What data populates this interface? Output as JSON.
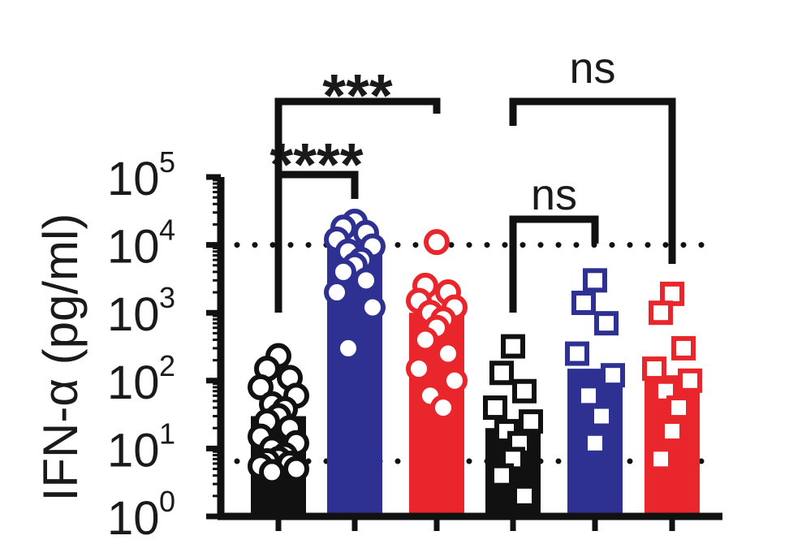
{
  "chart_data": {
    "type": "bar",
    "title": "",
    "ylabel": "IFN-α (pg/ml)",
    "yscale": "log",
    "ylim": [
      1,
      100000
    ],
    "yticks": [
      {
        "base": "10",
        "exp": "0",
        "value": 1
      },
      {
        "base": "10",
        "exp": "1",
        "value": 10
      },
      {
        "base": "10",
        "exp": "2",
        "value": 100
      },
      {
        "base": "10",
        "exp": "3",
        "value": 1000
      },
      {
        "base": "10",
        "exp": "4",
        "value": 10000
      },
      {
        "base": "10",
        "exp": "5",
        "value": 100000
      }
    ],
    "reference_lines": [
      {
        "value": 10000,
        "style": "dotted"
      },
      {
        "value": 6.5,
        "style": "dotted"
      }
    ],
    "grid": false,
    "legend": "none",
    "series": [
      {
        "marker": "circle",
        "color": "#111111",
        "fill": "#111111",
        "value": 30,
        "points": [
          230,
          150,
          110,
          80,
          60,
          45,
          38,
          30,
          25,
          20,
          15,
          12,
          10,
          8,
          7,
          6.5,
          6,
          5.5,
          5,
          4.5
        ]
      },
      {
        "marker": "circle",
        "color": "#2e3192",
        "fill": "#2e3192",
        "value": 9000,
        "points": [
          22000,
          18000,
          15000,
          12000,
          9500,
          8000,
          6000,
          5000,
          4000,
          3000,
          2000,
          1200,
          300
        ]
      },
      {
        "marker": "circle",
        "color": "#e8262b",
        "fill": "#e8262b",
        "value": 1000,
        "points": [
          11000,
          2500,
          2000,
          1500,
          1200,
          1000,
          800,
          600,
          400,
          250,
          150,
          100,
          60,
          40
        ]
      },
      {
        "marker": "square",
        "color": "#111111",
        "fill": "#111111",
        "value": 20,
        "points": [
          320,
          130,
          70,
          40,
          25,
          18,
          12,
          7,
          4,
          2
        ]
      },
      {
        "marker": "square",
        "color": "#2e3192",
        "fill": "#2e3192",
        "value": 150,
        "points": [
          3000,
          1400,
          700,
          250,
          120,
          60,
          30,
          12
        ]
      },
      {
        "marker": "square",
        "color": "#e8262b",
        "fill": "#e8262b",
        "value": 120,
        "points": [
          1900,
          1000,
          300,
          150,
          100,
          70,
          40,
          18,
          7
        ]
      }
    ],
    "comparisons": [
      {
        "from": 0,
        "to": 1,
        "label": "****",
        "size": "large"
      },
      {
        "from": 0,
        "to": 2,
        "label": "***",
        "size": "large"
      },
      {
        "from": 3,
        "to": 4,
        "label": "ns",
        "size": "small"
      },
      {
        "from": 3,
        "to": 5,
        "label": "ns",
        "size": "small"
      }
    ]
  }
}
